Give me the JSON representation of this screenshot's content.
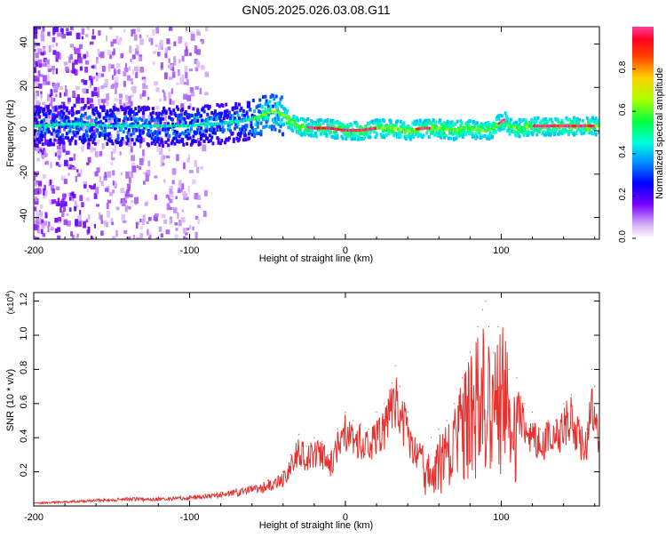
{
  "figure_title": "GN05.2025.026.03.08.G11",
  "colorbar": {
    "label": "Normalized spectral amplitude",
    "ticks": [
      "0.0",
      "0.2",
      "0.4",
      "0.6",
      "0.8"
    ],
    "range": [
      0,
      1
    ]
  },
  "chart_data": [
    {
      "type": "heatmap",
      "xlabel": "Height of straight line (km)",
      "ylabel": "Frequency (Hz)",
      "xlim": [
        -200,
        163
      ],
      "ylim": [
        -50,
        48
      ],
      "xticks": [
        "-200",
        "-100",
        "0",
        "100"
      ],
      "yticks": [
        "-40",
        "-20",
        "0",
        "20",
        "40"
      ],
      "grid": false,
      "ridge_trace": {
        "x": [
          -200,
          -175,
          -150,
          -125,
          -100,
          -90,
          -80,
          -70,
          -60,
          -50,
          -45,
          -40,
          -35,
          -30,
          -20,
          -10,
          0,
          10,
          20,
          30,
          40,
          50,
          60,
          70,
          75,
          80,
          85,
          90,
          95,
          100,
          102,
          105,
          110,
          120,
          130,
          140,
          150,
          163
        ],
        "y": [
          2,
          3,
          2,
          2,
          2,
          3,
          3,
          4,
          5,
          8,
          9,
          7,
          4,
          2,
          1,
          1,
          0,
          0,
          1,
          1,
          0,
          1,
          1,
          0,
          1,
          1,
          0,
          0,
          1,
          4,
          5,
          2,
          1,
          2,
          2,
          2,
          2,
          2
        ]
      },
      "peak_amplitude_segments": [
        {
          "x_range": [
            -25,
            20
          ],
          "level": "high"
        },
        {
          "x_range": [
            45,
            55
          ],
          "level": "high"
        },
        {
          "x_range": [
            98,
            103
          ],
          "level": "high"
        },
        {
          "x_range": [
            120,
            160
          ],
          "level": "high"
        }
      ]
    },
    {
      "type": "line",
      "xlabel": "Height of straight line (km)",
      "ylabel": "SNR (10 * v/v)",
      "y_multiplier": "(x10",
      "y_multiplier_exp": "4",
      "y_multiplier_close": ")",
      "xlim": [
        -200,
        163
      ],
      "ylim": [
        0,
        1.25
      ],
      "xticks": [
        "-200",
        "-100",
        "0",
        "100"
      ],
      "yticks": [
        "0.2",
        "0.4",
        "0.6",
        "0.8",
        "1.0",
        "1.2"
      ],
      "grid": false,
      "color": "#e8312e",
      "series": [
        {
          "x": [
            -200,
            -180,
            -160,
            -140,
            -120,
            -100,
            -90,
            -80,
            -70,
            -60,
            -50,
            -40,
            -35,
            -30,
            -25,
            -20,
            -15,
            -10,
            -5,
            0,
            5,
            10,
            15,
            20,
            25,
            30,
            32,
            35,
            40,
            45,
            50,
            55,
            60,
            65,
            70,
            75,
            80,
            85,
            88,
            90,
            92,
            95,
            98,
            100,
            105,
            110,
            115,
            120,
            125,
            130,
            135,
            140,
            145,
            150,
            155,
            158,
            160,
            163
          ],
          "y": [
            0.02,
            0.03,
            0.04,
            0.05,
            0.05,
            0.06,
            0.07,
            0.08,
            0.1,
            0.12,
            0.15,
            0.2,
            0.3,
            0.42,
            0.35,
            0.4,
            0.38,
            0.3,
            0.45,
            0.55,
            0.5,
            0.48,
            0.45,
            0.55,
            0.6,
            0.72,
            0.82,
            0.7,
            0.55,
            0.4,
            0.35,
            0.4,
            0.45,
            0.5,
            0.6,
            0.75,
            0.9,
            1.05,
            1.15,
            1.2,
            1.05,
            0.9,
            1.05,
            1.25,
            0.8,
            0.75,
            0.6,
            0.55,
            0.45,
            0.5,
            0.5,
            0.6,
            0.65,
            0.5,
            0.45,
            0.8,
            0.7,
            0.45
          ]
        }
      ]
    }
  ]
}
